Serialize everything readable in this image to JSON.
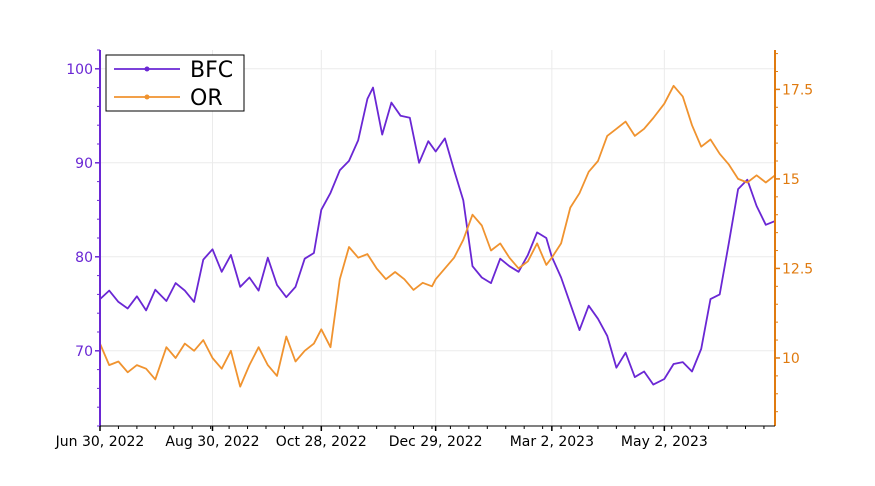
{
  "chart_data": {
    "type": "line",
    "x_type": "date",
    "xlim": [
      "2022-06-30",
      "2023-07-01"
    ],
    "x_ticks": [
      {
        "date": "2022-06-30",
        "label": "Jun 30, 2022"
      },
      {
        "date": "2022-08-30",
        "label": "Aug 30, 2022"
      },
      {
        "date": "2022-10-28",
        "label": "Oct 28, 2022"
      },
      {
        "date": "2022-12-29",
        "label": "Dec 29, 2022"
      },
      {
        "date": "2023-03-02",
        "label": "Mar 2, 2023"
      },
      {
        "date": "2023-05-02",
        "label": "May 2, 2023"
      }
    ],
    "y_left": {
      "lim": [
        62,
        102
      ],
      "ticks": [
        70,
        80,
        90,
        100
      ],
      "tick_labels": [
        "70",
        "80",
        "90",
        "100"
      ],
      "color": "#6a27d4"
    },
    "y_right": {
      "lim": [
        8.1,
        18.6
      ],
      "ticks": [
        10,
        12.5,
        15,
        17.5
      ],
      "tick_labels": [
        "10",
        "12.5",
        "15",
        "17.5"
      ],
      "color": "#e07b10"
    },
    "grid": true,
    "legend": {
      "placement": "top-left"
    },
    "series": [
      {
        "name": "BFC",
        "axis": "left",
        "color": "#6a27d4",
        "points": [
          [
            "2022-06-30",
            75.5
          ],
          [
            "2022-07-05",
            76.4
          ],
          [
            "2022-07-10",
            75.2
          ],
          [
            "2022-07-15",
            74.5
          ],
          [
            "2022-07-20",
            75.8
          ],
          [
            "2022-07-25",
            74.3
          ],
          [
            "2022-07-30",
            76.5
          ],
          [
            "2022-08-05",
            75.3
          ],
          [
            "2022-08-10",
            77.2
          ],
          [
            "2022-08-15",
            76.4
          ],
          [
            "2022-08-20",
            75.2
          ],
          [
            "2022-08-25",
            79.7
          ],
          [
            "2022-08-30",
            80.8
          ],
          [
            "2022-09-04",
            78.4
          ],
          [
            "2022-09-09",
            80.2
          ],
          [
            "2022-09-14",
            76.8
          ],
          [
            "2022-09-19",
            77.8
          ],
          [
            "2022-09-24",
            76.4
          ],
          [
            "2022-09-29",
            79.9
          ],
          [
            "2022-10-04",
            77.0
          ],
          [
            "2022-10-09",
            75.7
          ],
          [
            "2022-10-14",
            76.8
          ],
          [
            "2022-10-19",
            79.8
          ],
          [
            "2022-10-24",
            80.4
          ],
          [
            "2022-10-28",
            85.0
          ],
          [
            "2022-11-02",
            86.8
          ],
          [
            "2022-11-07",
            89.2
          ],
          [
            "2022-11-12",
            90.2
          ],
          [
            "2022-11-17",
            92.4
          ],
          [
            "2022-11-22",
            96.8
          ],
          [
            "2022-11-25",
            98.0
          ],
          [
            "2022-11-30",
            93.0
          ],
          [
            "2022-12-05",
            96.4
          ],
          [
            "2022-12-10",
            95.0
          ],
          [
            "2022-12-15",
            94.8
          ],
          [
            "2022-12-20",
            90.0
          ],
          [
            "2022-12-25",
            92.3
          ],
          [
            "2022-12-29",
            91.2
          ],
          [
            "2023-01-03",
            92.6
          ],
          [
            "2023-01-08",
            89.2
          ],
          [
            "2023-01-13",
            86.0
          ],
          [
            "2023-01-18",
            79.0
          ],
          [
            "2023-01-23",
            77.8
          ],
          [
            "2023-01-28",
            77.2
          ],
          [
            "2023-02-02",
            79.8
          ],
          [
            "2023-02-07",
            79.0
          ],
          [
            "2023-02-12",
            78.4
          ],
          [
            "2023-02-17",
            80.2
          ],
          [
            "2023-02-22",
            82.6
          ],
          [
            "2023-02-27",
            82.0
          ],
          [
            "2023-03-02",
            80.0
          ],
          [
            "2023-03-07",
            77.8
          ],
          [
            "2023-03-12",
            75.0
          ],
          [
            "2023-03-17",
            72.2
          ],
          [
            "2023-03-22",
            74.8
          ],
          [
            "2023-03-27",
            73.4
          ],
          [
            "2023-04-01",
            71.6
          ],
          [
            "2023-04-06",
            68.2
          ],
          [
            "2023-04-11",
            69.8
          ],
          [
            "2023-04-16",
            67.2
          ],
          [
            "2023-04-21",
            67.8
          ],
          [
            "2023-04-26",
            66.4
          ],
          [
            "2023-05-02",
            67.0
          ],
          [
            "2023-05-07",
            68.6
          ],
          [
            "2023-05-12",
            68.8
          ],
          [
            "2023-05-17",
            67.8
          ],
          [
            "2023-05-22",
            70.2
          ],
          [
            "2023-05-27",
            75.5
          ],
          [
            "2023-06-01",
            76.0
          ],
          [
            "2023-06-06",
            81.5
          ],
          [
            "2023-06-11",
            87.2
          ],
          [
            "2023-06-16",
            88.2
          ],
          [
            "2023-06-21",
            85.4
          ],
          [
            "2023-06-26",
            83.4
          ],
          [
            "2023-07-01",
            83.8
          ]
        ]
      },
      {
        "name": "OR",
        "axis": "right",
        "color": "#f0932f",
        "points": [
          [
            "2022-06-30",
            10.4
          ],
          [
            "2022-07-05",
            9.8
          ],
          [
            "2022-07-10",
            9.9
          ],
          [
            "2022-07-15",
            9.6
          ],
          [
            "2022-07-20",
            9.8
          ],
          [
            "2022-07-25",
            9.7
          ],
          [
            "2022-07-30",
            9.4
          ],
          [
            "2022-08-05",
            10.3
          ],
          [
            "2022-08-10",
            10.0
          ],
          [
            "2022-08-15",
            10.4
          ],
          [
            "2022-08-20",
            10.2
          ],
          [
            "2022-08-25",
            10.5
          ],
          [
            "2022-08-30",
            10.0
          ],
          [
            "2022-09-04",
            9.7
          ],
          [
            "2022-09-09",
            10.2
          ],
          [
            "2022-09-14",
            9.2
          ],
          [
            "2022-09-19",
            9.8
          ],
          [
            "2022-09-24",
            10.3
          ],
          [
            "2022-09-29",
            9.8
          ],
          [
            "2022-10-04",
            9.5
          ],
          [
            "2022-10-09",
            10.6
          ],
          [
            "2022-10-14",
            9.9
          ],
          [
            "2022-10-19",
            10.2
          ],
          [
            "2022-10-24",
            10.4
          ],
          [
            "2022-10-28",
            10.8
          ],
          [
            "2022-11-02",
            10.3
          ],
          [
            "2022-11-07",
            12.2
          ],
          [
            "2022-11-12",
            13.1
          ],
          [
            "2022-11-17",
            12.8
          ],
          [
            "2022-11-22",
            12.9
          ],
          [
            "2022-11-27",
            12.5
          ],
          [
            "2022-12-02",
            12.2
          ],
          [
            "2022-12-07",
            12.4
          ],
          [
            "2022-12-12",
            12.2
          ],
          [
            "2022-12-17",
            11.9
          ],
          [
            "2022-12-22",
            12.1
          ],
          [
            "2022-12-27",
            12.0
          ],
          [
            "2022-12-29",
            12.2
          ],
          [
            "2023-01-03",
            12.5
          ],
          [
            "2023-01-08",
            12.8
          ],
          [
            "2023-01-13",
            13.3
          ],
          [
            "2023-01-18",
            14.0
          ],
          [
            "2023-01-23",
            13.7
          ],
          [
            "2023-01-28",
            13.0
          ],
          [
            "2023-02-02",
            13.2
          ],
          [
            "2023-02-07",
            12.8
          ],
          [
            "2023-02-12",
            12.5
          ],
          [
            "2023-02-17",
            12.7
          ],
          [
            "2023-02-22",
            13.2
          ],
          [
            "2023-02-27",
            12.6
          ],
          [
            "2023-03-02",
            12.8
          ],
          [
            "2023-03-07",
            13.2
          ],
          [
            "2023-03-12",
            14.2
          ],
          [
            "2023-03-17",
            14.6
          ],
          [
            "2023-03-22",
            15.2
          ],
          [
            "2023-03-27",
            15.5
          ],
          [
            "2023-04-01",
            16.2
          ],
          [
            "2023-04-06",
            16.4
          ],
          [
            "2023-04-11",
            16.6
          ],
          [
            "2023-04-16",
            16.2
          ],
          [
            "2023-04-21",
            16.4
          ],
          [
            "2023-04-26",
            16.7
          ],
          [
            "2023-05-02",
            17.1
          ],
          [
            "2023-05-07",
            17.6
          ],
          [
            "2023-05-12",
            17.3
          ],
          [
            "2023-05-17",
            16.5
          ],
          [
            "2023-05-22",
            15.9
          ],
          [
            "2023-05-27",
            16.1
          ],
          [
            "2023-06-01",
            15.7
          ],
          [
            "2023-06-06",
            15.4
          ],
          [
            "2023-06-11",
            15.0
          ],
          [
            "2023-06-16",
            14.9
          ],
          [
            "2023-06-21",
            15.1
          ],
          [
            "2023-06-26",
            14.9
          ],
          [
            "2023-07-01",
            15.1
          ]
        ]
      }
    ]
  }
}
